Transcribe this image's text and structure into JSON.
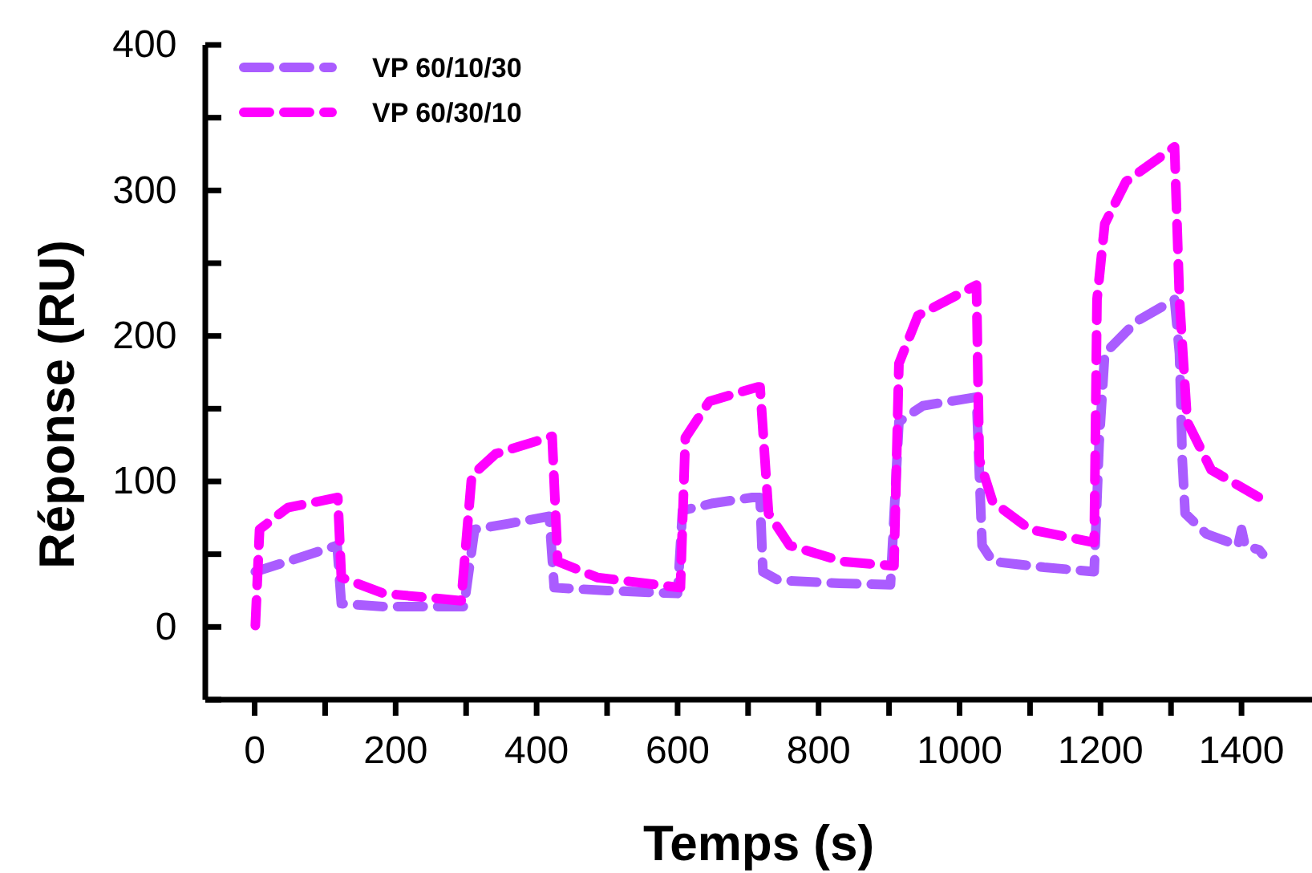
{
  "chart_data": {
    "type": "line",
    "xlabel": "Temps (s)",
    "ylabel": "Réponse (RU)",
    "xlim": [
      -70,
      1500
    ],
    "ylim": [
      -50,
      400
    ],
    "xticks": [
      0,
      {
        "value": 100,
        "label": null
      },
      200,
      {
        "value": 300,
        "label": null
      },
      400,
      {
        "value": 500,
        "label": null
      },
      600,
      {
        "value": 700,
        "label": null
      },
      800,
      {
        "value": 900,
        "label": null
      },
      1000,
      {
        "value": 1100,
        "label": null
      },
      1200,
      {
        "value": 1300,
        "label": null
      },
      1400
    ],
    "yticks": [
      {
        "value": -50,
        "label": null
      },
      0,
      {
        "value": 50,
        "label": null
      },
      100,
      {
        "value": 150,
        "label": null
      },
      200,
      {
        "value": 250,
        "label": null
      },
      300,
      {
        "value": 350,
        "label": null
      },
      400
    ],
    "grid": false,
    "legend": "top left",
    "line_style": "dashed",
    "marker": "none",
    "series": [
      {
        "name": "VP 60/10/30",
        "color": "#aa5cff",
        "x": [
          1,
          47,
          117,
          123,
          183,
          297,
          312,
          360,
          418,
          425,
          500,
          600,
          607,
          650,
          706,
          717,
          721,
          743,
          830,
          902,
          914,
          948,
          1024,
          1032,
          1047,
          1120,
          1191,
          1198,
          1206,
          1251,
          1305,
          1312,
          1316,
          1320,
          1350,
          1395,
          1400,
          1405,
          1425,
          1430
        ],
        "values": [
          38,
          45,
          56,
          16,
          14,
          14,
          67,
          71,
          76,
          27,
          25,
          23,
          80,
          85,
          89,
          89,
          38,
          32,
          30,
          29,
          141,
          152,
          158,
          56,
          45,
          41,
          38,
          126,
          188,
          210,
          225,
          188,
          115,
          78,
          64,
          56,
          67,
          56,
          53,
          50
        ]
      },
      {
        "name": "VP 60/30/10",
        "color": "#ff00ff",
        "x": [
          1,
          7,
          47,
          118,
          123,
          183,
          293,
          308,
          342,
          422,
          430,
          486,
          604,
          611,
          645,
          714,
          717,
          729,
          759,
          834,
          907,
          914,
          941,
          1024,
          1028,
          1047,
          1100,
          1191,
          1195,
          1206,
          1236,
          1305,
          1312,
          1323,
          1357,
          1425
        ],
        "values": [
          1,
          67,
          82,
          89,
          34,
          23,
          18,
          104,
          119,
          131,
          45,
          34,
          27,
          130,
          155,
          165,
          165,
          78,
          56,
          45,
          42,
          181,
          214,
          235,
          115,
          86,
          67,
          58,
          225,
          277,
          306,
          330,
          225,
          141,
          108,
          89
        ]
      }
    ]
  }
}
